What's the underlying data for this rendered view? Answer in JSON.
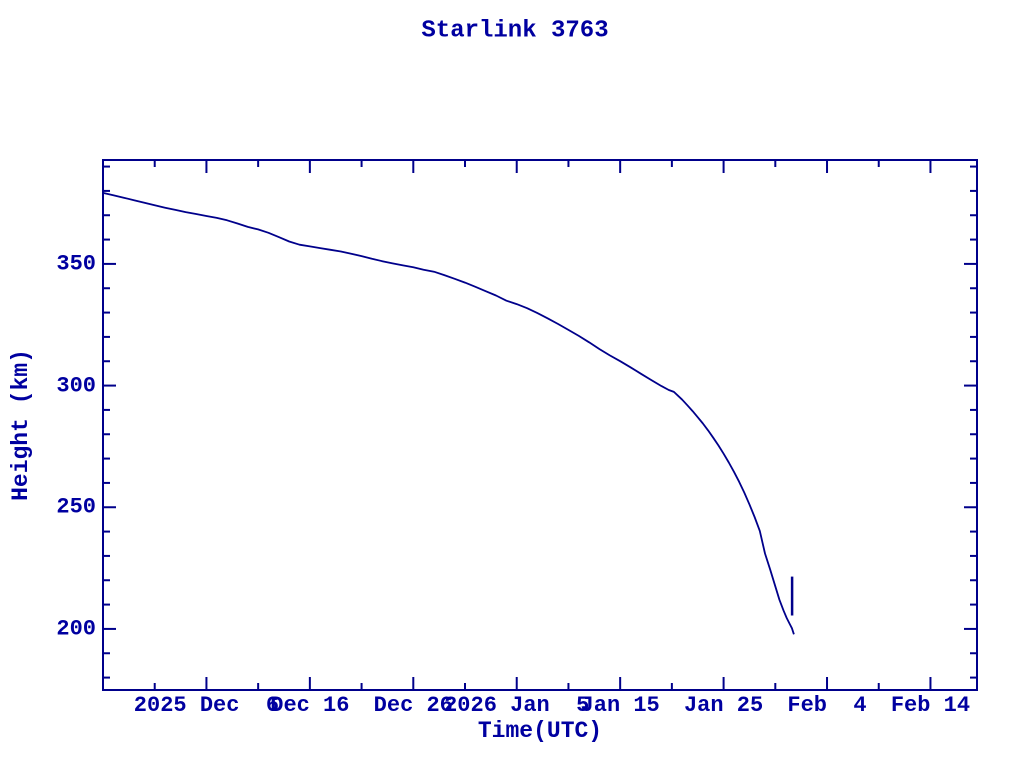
{
  "chart": {
    "title": "Starlink 3763",
    "x_axis_title": "Time(UTC)",
    "y_axis_title": "Height (km)",
    "colors": {
      "text": "#0000A0",
      "axis": "#00008B",
      "line": "#00008B"
    }
  },
  "chart_data": {
    "type": "line",
    "title": "Starlink 3763",
    "xlabel": "Time(UTC)",
    "ylabel": "Height (km)",
    "x_unit": "days since 2025-11-26 (axis origin at left edge)",
    "xlim": [
      0,
      84.5
    ],
    "ylim": [
      174.9,
      392.7
    ],
    "grid": false,
    "legend": null,
    "x_major_ticks": [
      {
        "day": 10,
        "label": "2025 Dec  6"
      },
      {
        "day": 20,
        "label": "Dec 16"
      },
      {
        "day": 30,
        "label": "Dec 26"
      },
      {
        "day": 40,
        "label": "2026 Jan  5"
      },
      {
        "day": 50,
        "label": "Jan 15"
      },
      {
        "day": 60,
        "label": "Jan 25"
      },
      {
        "day": 70,
        "label": "Feb  4"
      },
      {
        "day": 80,
        "label": "Feb 14"
      }
    ],
    "x_minor_tick_days": [
      5,
      15,
      25,
      35,
      45,
      55,
      65,
      75
    ],
    "y_major_ticks": [
      {
        "km": 200,
        "label": "200"
      },
      {
        "km": 250,
        "label": "250"
      },
      {
        "km": 300,
        "label": "300"
      },
      {
        "km": 350,
        "label": "350"
      }
    ],
    "y_minor_tick_kms": [
      180,
      190,
      210,
      220,
      230,
      240,
      260,
      270,
      280,
      290,
      310,
      320,
      330,
      340,
      360,
      370,
      380,
      390
    ],
    "series": [
      {
        "name": "height-profile",
        "stroke_width": 1.8,
        "points": [
          [
            0,
            379.2
          ],
          [
            1,
            378.2
          ],
          [
            2,
            377.2
          ],
          [
            3,
            376.2
          ],
          [
            4,
            375.1
          ],
          [
            5,
            374.1
          ],
          [
            6,
            373.1
          ],
          [
            7,
            372.2
          ],
          [
            8,
            371.3
          ],
          [
            9,
            370.5
          ],
          [
            10,
            369.7
          ],
          [
            11,
            368.9
          ],
          [
            12,
            367.9
          ],
          [
            13,
            366.6
          ],
          [
            14,
            365.2
          ],
          [
            15,
            364.2
          ],
          [
            16,
            362.8
          ],
          [
            17,
            361.0
          ],
          [
            18,
            359.2
          ],
          [
            19,
            357.9
          ],
          [
            20,
            357.2
          ],
          [
            21,
            356.5
          ],
          [
            22,
            355.8
          ],
          [
            23,
            355.1
          ],
          [
            24,
            354.2
          ],
          [
            25,
            353.2
          ],
          [
            26,
            352.1
          ],
          [
            27,
            351.1
          ],
          [
            28,
            350.2
          ],
          [
            29,
            349.4
          ],
          [
            30,
            348.6
          ],
          [
            31,
            347.6
          ],
          [
            32,
            346.8
          ],
          [
            33,
            345.4
          ],
          [
            34,
            343.9
          ],
          [
            35,
            342.3
          ],
          [
            36,
            340.6
          ],
          [
            37,
            338.8
          ],
          [
            38,
            337.0
          ],
          [
            39,
            334.9
          ],
          [
            40,
            333.5
          ],
          [
            41,
            331.8
          ],
          [
            42,
            329.8
          ],
          [
            43,
            327.6
          ],
          [
            44,
            325.3
          ],
          [
            45,
            322.9
          ],
          [
            46,
            320.4
          ],
          [
            47,
            317.8
          ],
          [
            48,
            315.0
          ],
          [
            49,
            312.4
          ],
          [
            50,
            310.0
          ],
          [
            51,
            307.5
          ],
          [
            52,
            304.9
          ],
          [
            53,
            302.3
          ],
          [
            54,
            299.8
          ],
          [
            54.7,
            298.2
          ],
          [
            55.2,
            297.4
          ],
          [
            55.6,
            295.8
          ],
          [
            56,
            294.2
          ],
          [
            56.5,
            291.9
          ],
          [
            57,
            289.5
          ],
          [
            57.5,
            287.0
          ],
          [
            58,
            284.4
          ],
          [
            58.5,
            281.6
          ],
          [
            59,
            278.6
          ],
          [
            59.5,
            275.4
          ],
          [
            60,
            272.0
          ],
          [
            60.5,
            268.4
          ],
          [
            61,
            264.6
          ],
          [
            61.5,
            260.5
          ],
          [
            62,
            256.0
          ],
          [
            62.5,
            251.2
          ],
          [
            63,
            246.0
          ],
          [
            63.5,
            240.3
          ],
          [
            64,
            231.0
          ],
          [
            64.5,
            224.5
          ],
          [
            65,
            217.5
          ],
          [
            65.4,
            212.0
          ],
          [
            65.8,
            207.5
          ],
          [
            66.1,
            204.5
          ],
          [
            66.4,
            202.0
          ],
          [
            66.6,
            200.3
          ],
          [
            66.8,
            197.8
          ]
        ]
      },
      {
        "name": "final-decay-spike",
        "stroke_width": 2.5,
        "points": [
          [
            66.62,
            221.5
          ],
          [
            66.62,
            205.5
          ]
        ]
      }
    ]
  }
}
